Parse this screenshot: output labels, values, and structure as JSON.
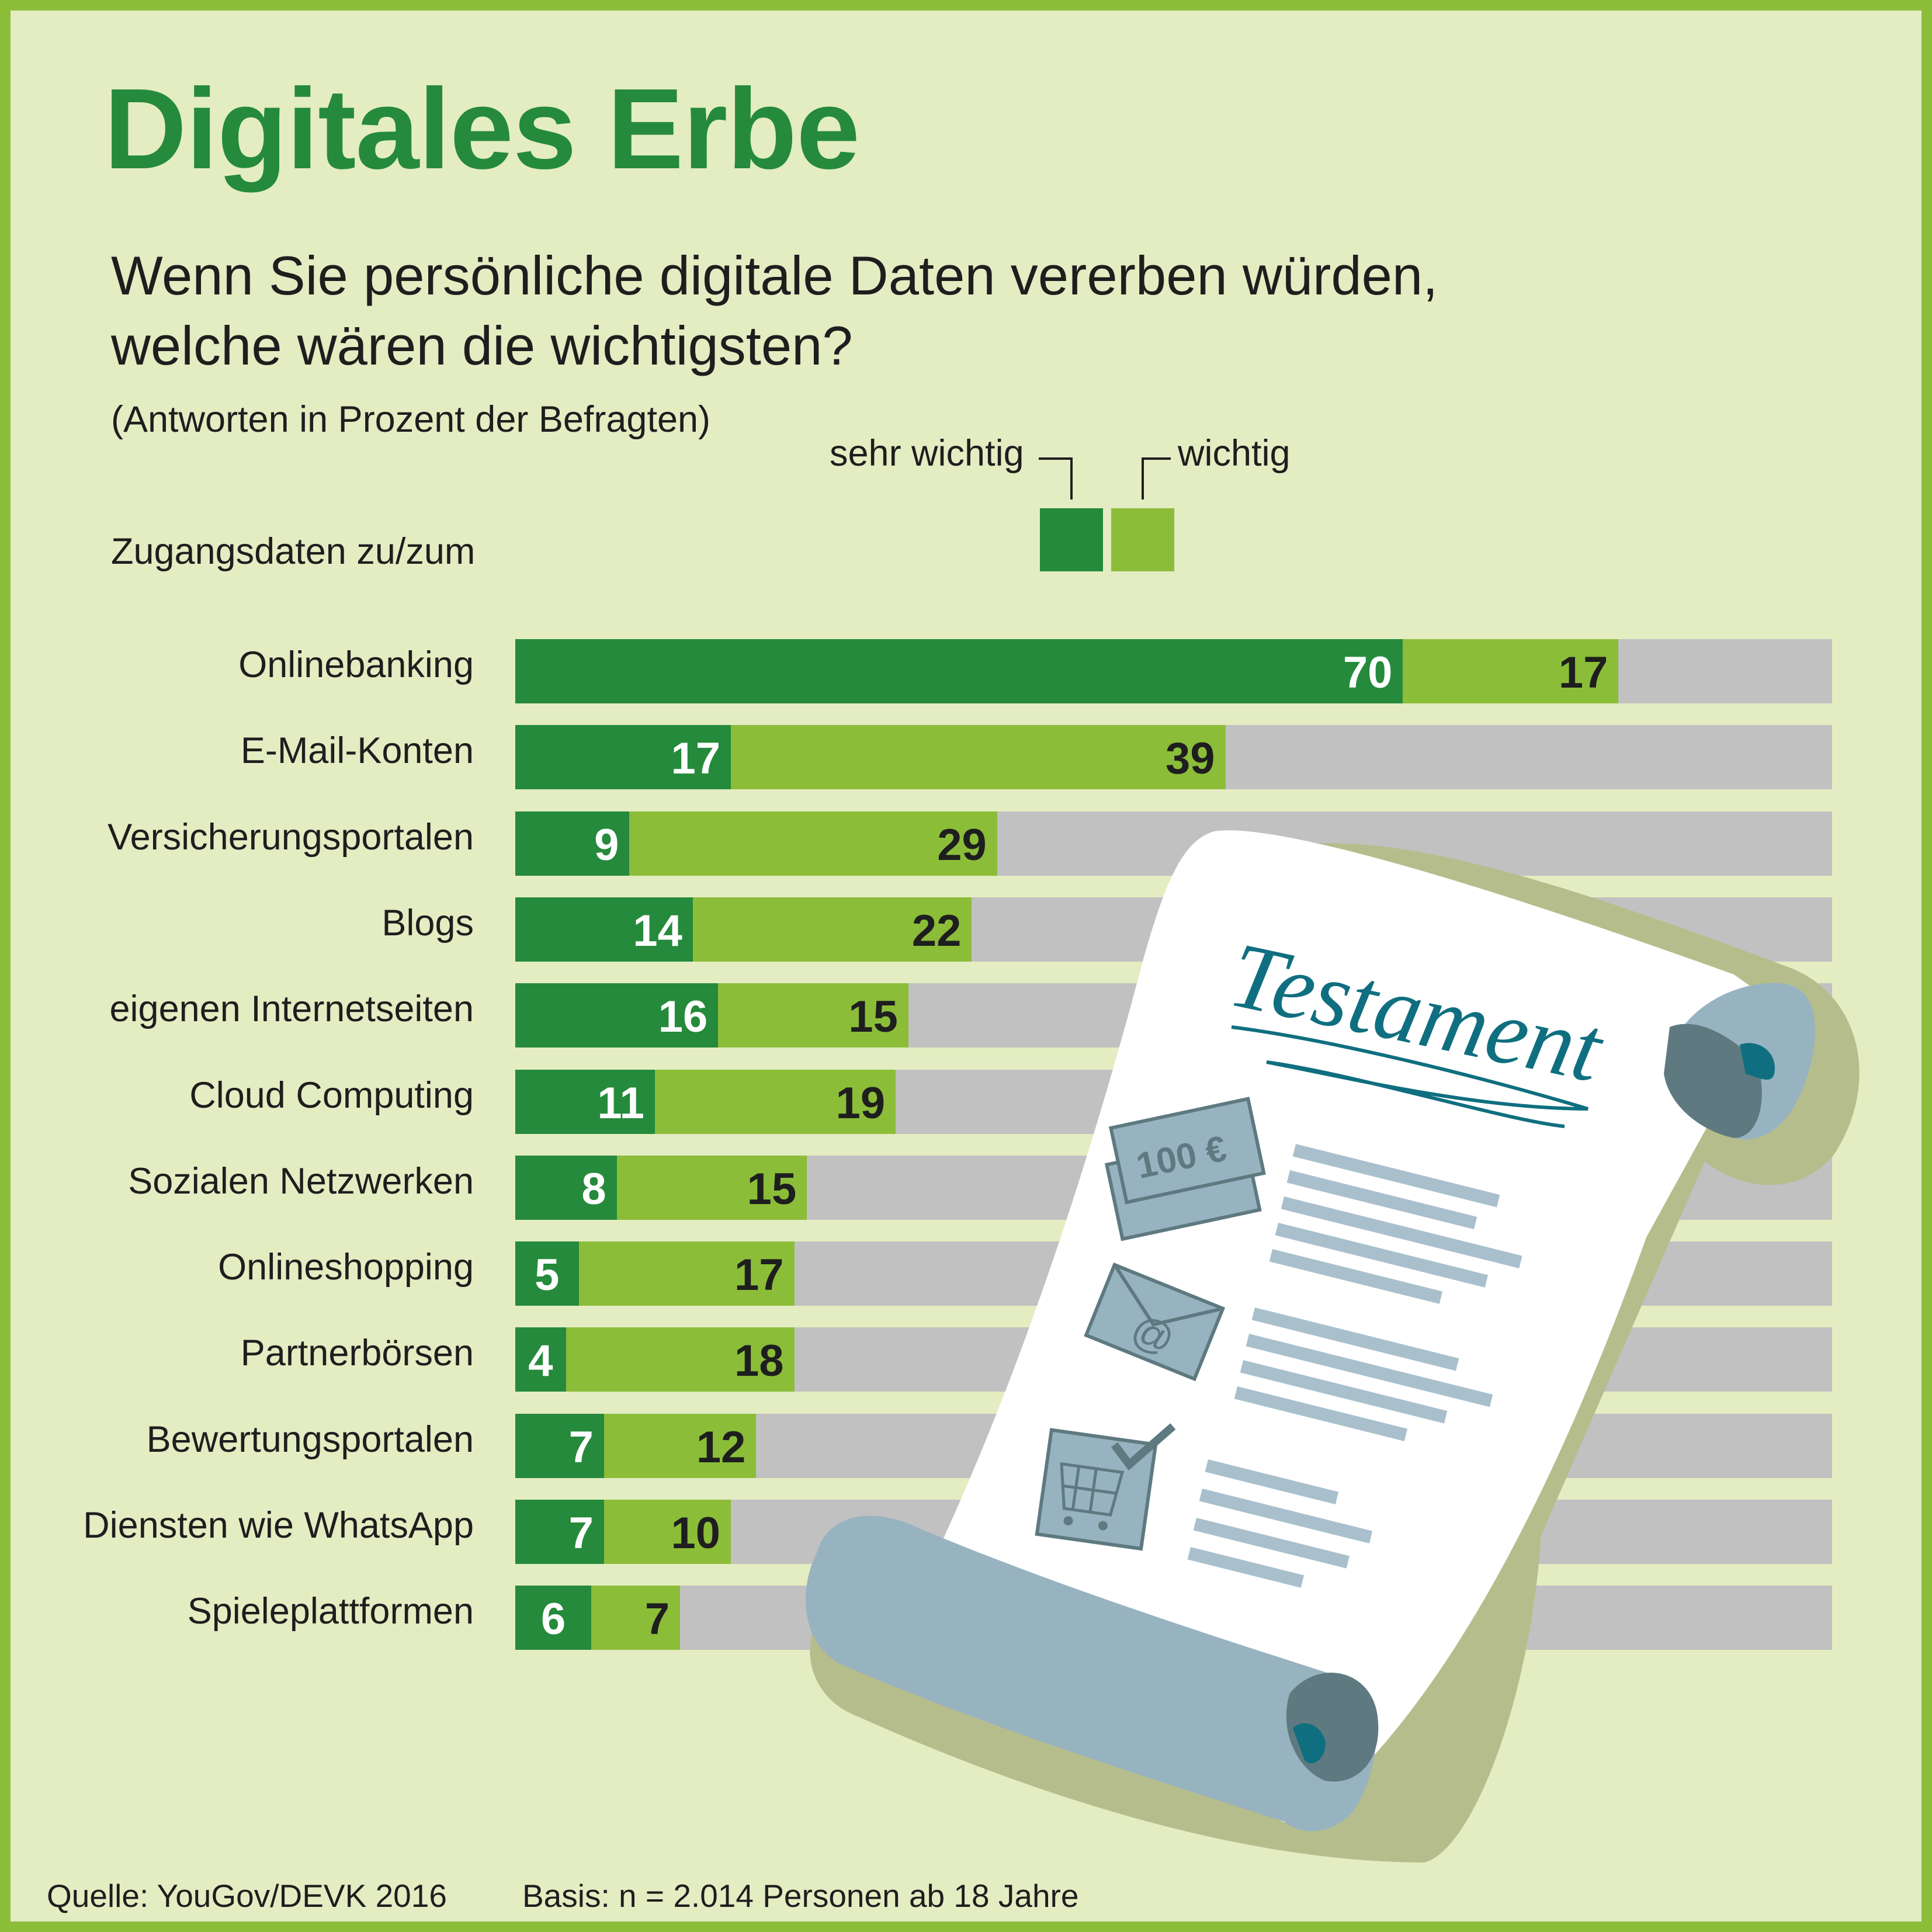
{
  "title": "Digitales Erbe",
  "question_line1": "Wenn Sie persönliche digitale Daten vererben würden,",
  "question_line2": "welche wären die wichtigsten?",
  "subtitle": "(Antworten in Prozent der Befragten)",
  "section_label": "Zugangsdaten zu/zum",
  "illustration": {
    "document_title": "Testament",
    "banknote_text": "100 €",
    "email_symbol": "@"
  },
  "footer": {
    "source": "Quelle: YouGov/DEVK 2016",
    "basis": "Basis: n = 2.014 Personen ab 18 Jahre"
  },
  "colors": {
    "sehr_wichtig": "#258a3c",
    "wichtig": "#8bbd39",
    "track": "#c1c1c1",
    "background": "#e4ecc2"
  },
  "chart_data": {
    "type": "bar",
    "orientation": "horizontal",
    "stacked": true,
    "xlim": [
      0,
      100
    ],
    "legend": [
      "sehr wichtig",
      "wichtig"
    ],
    "legend_position": "top",
    "categories": [
      "Onlinebanking",
      "E-Mail-Konten",
      "Versicherungsportalen",
      "Blogs",
      "eigenen Internetseiten",
      "Cloud Computing",
      "Sozialen Netzwerken",
      "Onlineshopping",
      "Partnerbörsen",
      "Bewertungsportalen",
      "Diensten wie WhatsApp",
      "Spieleplattformen"
    ],
    "series": [
      {
        "name": "sehr wichtig",
        "values": [
          70,
          17,
          9,
          14,
          16,
          11,
          8,
          5,
          4,
          7,
          7,
          6
        ]
      },
      {
        "name": "wichtig",
        "values": [
          17,
          39,
          29,
          22,
          15,
          19,
          15,
          17,
          18,
          12,
          10,
          7
        ]
      }
    ]
  }
}
